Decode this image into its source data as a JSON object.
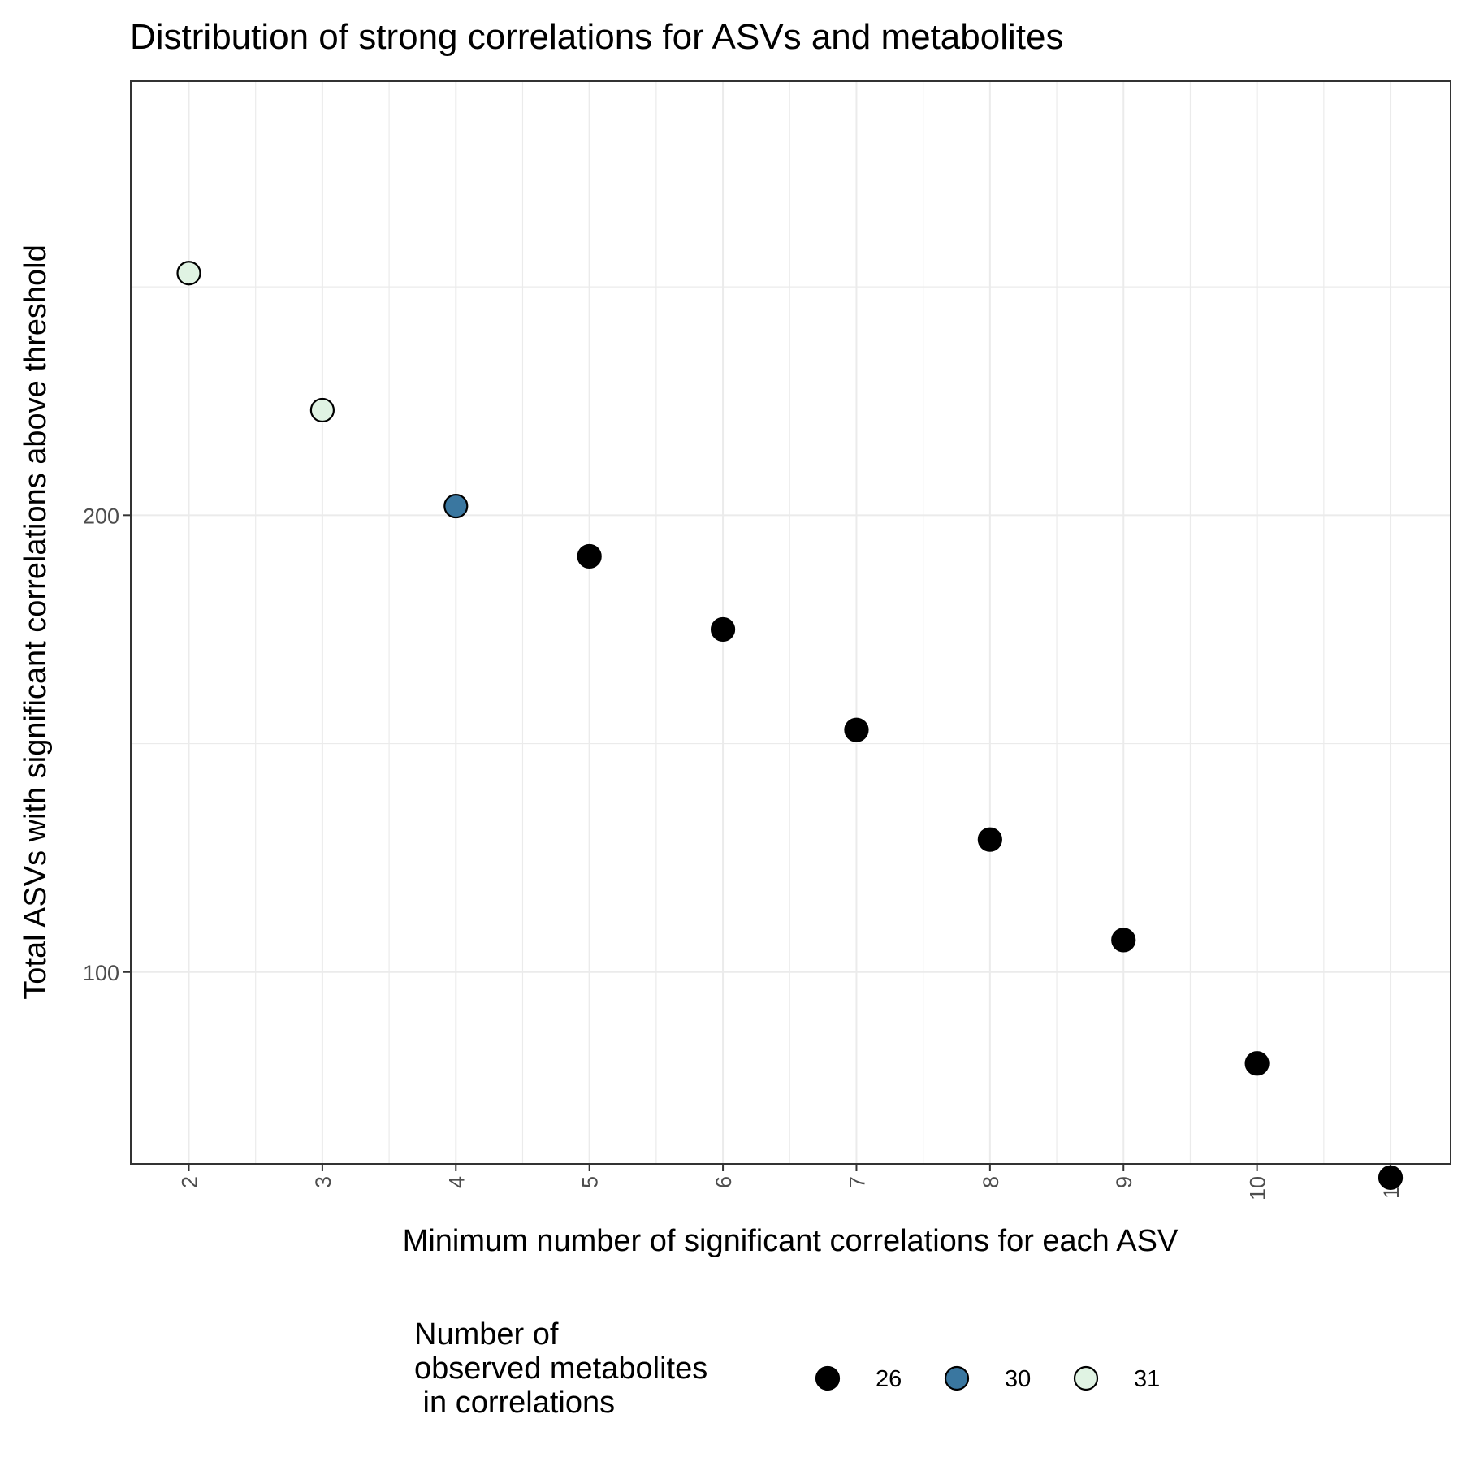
{
  "chart_data": {
    "type": "scatter",
    "title": "Distribution of strong correlations for ASVs and metabolites",
    "xlabel": "Minimum number of significant correlations for each ASV",
    "ylabel": "Total ASVs with significant correlations above threshold",
    "x_ticks": [
      "2",
      "3",
      "4",
      "5",
      "6",
      "7",
      "8",
      "9",
      "10",
      "11"
    ],
    "y_ticks": [
      "100",
      "200"
    ],
    "xlim": [
      1.565,
      11.45
    ],
    "ylim": [
      58,
      295
    ],
    "grid": true,
    "legend": {
      "title_lines": [
        "Number of",
        "observed metabolites",
        " in correlations"
      ],
      "position": "bottom",
      "entries": [
        {
          "label": "26",
          "color": "#000000"
        },
        {
          "label": "30",
          "color": "#3a77a0"
        },
        {
          "label": "31",
          "color": "#e0f3e3"
        }
      ]
    },
    "points": [
      {
        "x": 2,
        "y": 253,
        "group": "31"
      },
      {
        "x": 3,
        "y": 223,
        "group": "31"
      },
      {
        "x": 4,
        "y": 202,
        "group": "30"
      },
      {
        "x": 5,
        "y": 191,
        "group": "26"
      },
      {
        "x": 6,
        "y": 175,
        "group": "26"
      },
      {
        "x": 7,
        "y": 153,
        "group": "26"
      },
      {
        "x": 8,
        "y": 129,
        "group": "26"
      },
      {
        "x": 9,
        "y": 107,
        "group": "26"
      },
      {
        "x": 10,
        "y": 80,
        "group": "26"
      },
      {
        "x": 11,
        "y": 55,
        "group": "26"
      }
    ]
  }
}
